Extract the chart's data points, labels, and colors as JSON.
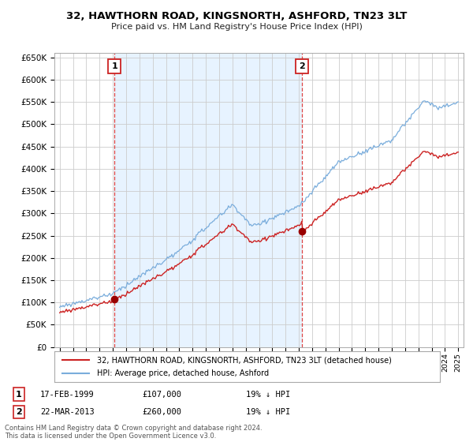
{
  "title": "32, HAWTHORN ROAD, KINGSNORTH, ASHFORD, TN23 3LT",
  "subtitle": "Price paid vs. HM Land Registry's House Price Index (HPI)",
  "ylim": [
    0,
    660000
  ],
  "yticks": [
    0,
    50000,
    100000,
    150000,
    200000,
    250000,
    300000,
    350000,
    400000,
    450000,
    500000,
    550000,
    600000,
    650000
  ],
  "ytick_labels": [
    "£0",
    "£50K",
    "£100K",
    "£150K",
    "£200K",
    "£250K",
    "£300K",
    "£350K",
    "£400K",
    "£450K",
    "£500K",
    "£550K",
    "£600K",
    "£650K"
  ],
  "sale1_year": 1999.12,
  "sale1_price": 107000,
  "sale2_year": 2013.22,
  "sale2_price": 260000,
  "hpi_line_color": "#7aaddc",
  "price_line_color": "#cc2222",
  "sale_marker_color": "#990000",
  "vline_color": "#dd4444",
  "grid_color": "#cccccc",
  "bg_band_color": "#ddeeff",
  "background_color": "#ffffff",
  "legend_label1": "32, HAWTHORN ROAD, KINGSNORTH, ASHFORD, TN23 3LT (detached house)",
  "legend_label2": "HPI: Average price, detached house, Ashford",
  "footer_text": "Contains HM Land Registry data © Crown copyright and database right 2024.\nThis data is licensed under the Open Government Licence v3.0.",
  "table_row1": [
    "1",
    "17-FEB-1999",
    "£107,000",
    "19% ↓ HPI"
  ],
  "table_row2": [
    "2",
    "22-MAR-2013",
    "£260,000",
    "19% ↓ HPI"
  ]
}
